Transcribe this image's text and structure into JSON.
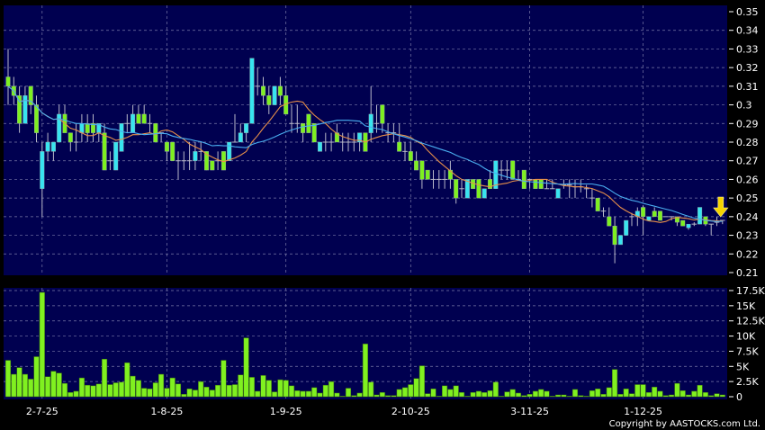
{
  "copyright": "Copyright by AASTOCKS.com Ltd.",
  "colors": {
    "background": "#000000",
    "panel": "#000050",
    "grid": "#7a7aa8",
    "up": "#38e4f0",
    "down": "#7ef020",
    "volume": "#80f020",
    "ma_short": "#e8904a",
    "ma_long": "#4aaef0",
    "marker": "#f5d400"
  },
  "chart_data": [
    {
      "type": "candlestick",
      "ylim": [
        0.21,
        0.35
      ],
      "yticks": [
        "0.21",
        "0.22",
        "0.23",
        "0.24",
        "0.25",
        "0.26",
        "0.27",
        "0.28",
        "0.29",
        "0.3",
        "0.31",
        "0.32",
        "0.33",
        "0.34",
        "0.35"
      ],
      "grid": true,
      "moving_averages": [
        {
          "window": 10,
          "color": "#e8904a"
        },
        {
          "window": 20,
          "color": "#4aaef0"
        }
      ],
      "marker": {
        "type": "down-arrow",
        "bar": 126
      },
      "candles_ohlc": [
        [
          0.315,
          0.33,
          0.3,
          0.31
        ],
        [
          0.31,
          0.315,
          0.3,
          0.305
        ],
        [
          0.305,
          0.31,
          0.285,
          0.29
        ],
        [
          0.29,
          0.31,
          0.29,
          0.305
        ],
        [
          0.31,
          0.31,
          0.295,
          0.3
        ],
        [
          0.3,
          0.305,
          0.28,
          0.285
        ],
        [
          0.255,
          0.28,
          0.24,
          0.275
        ],
        [
          0.275,
          0.285,
          0.27,
          0.28
        ],
        [
          0.275,
          0.28,
          0.27,
          0.28
        ],
        [
          0.28,
          0.3,
          0.28,
          0.295
        ],
        [
          0.295,
          0.3,
          0.285,
          0.285
        ],
        [
          0.285,
          0.285,
          0.275,
          0.28
        ],
        [
          0.28,
          0.29,
          0.275,
          0.28
        ],
        [
          0.285,
          0.295,
          0.28,
          0.29
        ],
        [
          0.29,
          0.295,
          0.28,
          0.285
        ],
        [
          0.29,
          0.295,
          0.28,
          0.285
        ],
        [
          0.285,
          0.29,
          0.28,
          0.29
        ],
        [
          0.285,
          0.29,
          0.265,
          0.265
        ],
        [
          0.27,
          0.275,
          0.265,
          0.27
        ],
        [
          0.265,
          0.28,
          0.265,
          0.28
        ],
        [
          0.275,
          0.29,
          0.275,
          0.29
        ],
        [
          0.29,
          0.295,
          0.285,
          0.29
        ],
        [
          0.285,
          0.3,
          0.285,
          0.295
        ],
        [
          0.295,
          0.3,
          0.29,
          0.29
        ],
        [
          0.295,
          0.3,
          0.29,
          0.29
        ],
        [
          0.29,
          0.295,
          0.285,
          0.29
        ],
        [
          0.29,
          0.29,
          0.28,
          0.28
        ],
        [
          0.285,
          0.285,
          0.28,
          0.285
        ],
        [
          0.28,
          0.28,
          0.27,
          0.275
        ],
        [
          0.28,
          0.28,
          0.27,
          0.27
        ],
        [
          0.27,
          0.275,
          0.26,
          0.27
        ],
        [
          0.27,
          0.275,
          0.265,
          0.27
        ],
        [
          0.27,
          0.28,
          0.265,
          0.27
        ],
        [
          0.27,
          0.28,
          0.265,
          0.275
        ],
        [
          0.275,
          0.28,
          0.27,
          0.275
        ],
        [
          0.275,
          0.275,
          0.265,
          0.265
        ],
        [
          0.27,
          0.27,
          0.265,
          0.265
        ],
        [
          0.27,
          0.275,
          0.265,
          0.27
        ],
        [
          0.275,
          0.275,
          0.265,
          0.265
        ],
        [
          0.27,
          0.28,
          0.27,
          0.28
        ],
        [
          0.28,
          0.295,
          0.28,
          0.28
        ],
        [
          0.28,
          0.29,
          0.28,
          0.285
        ],
        [
          0.285,
          0.29,
          0.28,
          0.29
        ],
        [
          0.29,
          0.325,
          0.29,
          0.325
        ],
        [
          0.31,
          0.32,
          0.305,
          0.31
        ],
        [
          0.31,
          0.315,
          0.3,
          0.305
        ],
        [
          0.305,
          0.31,
          0.295,
          0.3
        ],
        [
          0.3,
          0.31,
          0.3,
          0.31
        ],
        [
          0.31,
          0.315,
          0.3,
          0.305
        ],
        [
          0.305,
          0.31,
          0.295,
          0.295
        ],
        [
          0.29,
          0.3,
          0.285,
          0.29
        ],
        [
          0.29,
          0.3,
          0.285,
          0.29
        ],
        [
          0.29,
          0.29,
          0.28,
          0.285
        ],
        [
          0.295,
          0.295,
          0.285,
          0.285
        ],
        [
          0.29,
          0.29,
          0.28,
          0.28
        ],
        [
          0.275,
          0.28,
          0.275,
          0.28
        ],
        [
          0.28,
          0.285,
          0.275,
          0.28
        ],
        [
          0.28,
          0.285,
          0.275,
          0.28
        ],
        [
          0.285,
          0.29,
          0.28,
          0.28
        ],
        [
          0.28,
          0.285,
          0.275,
          0.28
        ],
        [
          0.28,
          0.285,
          0.275,
          0.28
        ],
        [
          0.28,
          0.285,
          0.275,
          0.28
        ],
        [
          0.28,
          0.285,
          0.275,
          0.285
        ],
        [
          0.285,
          0.285,
          0.275,
          0.275
        ],
        [
          0.285,
          0.31,
          0.28,
          0.295
        ],
        [
          0.29,
          0.3,
          0.285,
          0.29
        ],
        [
          0.3,
          0.3,
          0.285,
          0.29
        ],
        [
          0.285,
          0.29,
          0.28,
          0.285
        ],
        [
          0.285,
          0.29,
          0.28,
          0.285
        ],
        [
          0.28,
          0.29,
          0.275,
          0.275
        ],
        [
          0.275,
          0.28,
          0.27,
          0.275
        ],
        [
          0.275,
          0.28,
          0.27,
          0.27
        ],
        [
          0.27,
          0.275,
          0.265,
          0.265
        ],
        [
          0.27,
          0.27,
          0.255,
          0.26
        ],
        [
          0.265,
          0.265,
          0.26,
          0.26
        ],
        [
          0.26,
          0.265,
          0.255,
          0.26
        ],
        [
          0.26,
          0.265,
          0.255,
          0.26
        ],
        [
          0.26,
          0.265,
          0.255,
          0.26
        ],
        [
          0.265,
          0.27,
          0.255,
          0.26
        ],
        [
          0.26,
          0.26,
          0.247,
          0.25
        ],
        [
          0.255,
          0.26,
          0.25,
          0.255
        ],
        [
          0.25,
          0.26,
          0.25,
          0.26
        ],
        [
          0.26,
          0.26,
          0.255,
          0.255
        ],
        [
          0.26,
          0.26,
          0.25,
          0.25
        ],
        [
          0.25,
          0.255,
          0.25,
          0.255
        ],
        [
          0.26,
          0.265,
          0.255,
          0.255
        ],
        [
          0.255,
          0.27,
          0.255,
          0.27
        ],
        [
          0.265,
          0.27,
          0.26,
          0.265
        ],
        [
          0.265,
          0.27,
          0.26,
          0.265
        ],
        [
          0.27,
          0.27,
          0.26,
          0.26
        ],
        [
          0.26,
          0.265,
          0.26,
          0.26
        ],
        [
          0.265,
          0.265,
          0.255,
          0.255
        ],
        [
          0.26,
          0.26,
          0.255,
          0.26
        ],
        [
          0.26,
          0.26,
          0.255,
          0.255
        ],
        [
          0.26,
          0.26,
          0.255,
          0.255
        ],
        [
          0.255,
          0.26,
          0.255,
          0.255
        ],
        [
          0.255,
          0.26,
          0.255,
          0.255
        ],
        [
          0.25,
          0.255,
          0.25,
          0.255
        ],
        [
          0.257,
          0.26,
          0.255,
          0.257
        ],
        [
          0.257,
          0.26,
          0.25,
          0.257
        ],
        [
          0.256,
          0.26,
          0.25,
          0.256
        ],
        [
          0.256,
          0.26,
          0.253,
          0.256
        ],
        [
          0.255,
          0.257,
          0.25,
          0.255
        ],
        [
          0.25,
          0.255,
          0.245,
          0.25
        ],
        [
          0.25,
          0.25,
          0.243,
          0.243
        ],
        [
          0.243,
          0.245,
          0.24,
          0.243
        ],
        [
          0.24,
          0.245,
          0.235,
          0.235
        ],
        [
          0.235,
          0.24,
          0.215,
          0.225
        ],
        [
          0.225,
          0.23,
          0.225,
          0.23
        ],
        [
          0.23,
          0.238,
          0.23,
          0.238
        ],
        [
          0.24,
          0.242,
          0.235,
          0.24
        ],
        [
          0.24,
          0.245,
          0.235,
          0.243
        ],
        [
          0.245,
          0.246,
          0.23,
          0.24
        ],
        [
          0.238,
          0.24,
          0.238,
          0.24
        ],
        [
          0.243,
          0.245,
          0.24,
          0.24
        ],
        [
          0.243,
          0.243,
          0.238,
          0.238
        ],
        [
          0.24,
          0.24,
          0.24,
          0.24
        ],
        [
          0.24,
          0.24,
          0.238,
          0.24
        ],
        [
          0.24,
          0.24,
          0.235,
          0.237
        ],
        [
          0.238,
          0.238,
          0.235,
          0.235
        ],
        [
          0.234,
          0.236,
          0.233,
          0.236
        ],
        [
          0.236,
          0.237,
          0.235,
          0.236
        ],
        [
          0.236,
          0.245,
          0.236,
          0.245
        ],
        [
          0.24,
          0.24,
          0.235,
          0.236
        ],
        [
          0.236,
          0.236,
          0.23,
          0.236
        ],
        [
          0.237,
          0.24,
          0.235,
          0.237
        ],
        [
          0.238,
          0.238,
          0.236,
          0.238
        ]
      ]
    },
    {
      "type": "bar",
      "ylim": [
        0,
        17.5
      ],
      "yticks": [
        "0",
        "2.5K",
        "5K",
        "7.5K",
        "10K",
        "12.5K",
        "15K",
        "17.5K"
      ],
      "grid": true,
      "unit": "K",
      "volume": [
        6.0,
        3.7,
        4.8,
        3.7,
        2.9,
        6.6,
        17.2,
        3.3,
        4.2,
        3.9,
        2.2,
        0.7,
        0.9,
        3.1,
        1.9,
        1.8,
        2.1,
        6.2,
        2.0,
        2.3,
        2.4,
        5.6,
        3.4,
        2.7,
        1.4,
        1.3,
        2.3,
        3.7,
        1.4,
        3.1,
        2.1,
        0.4,
        1.3,
        1.1,
        2.5,
        1.6,
        1.1,
        1.9,
        6.0,
        1.9,
        2.0,
        3.6,
        9.7,
        3.2,
        0.9,
        3.5,
        2.7,
        0.8,
        2.8,
        2.7,
        1.8,
        1.0,
        0.9,
        0.9,
        1.5,
        0.6,
        1.9,
        2.5,
        0.6,
        0.1,
        1.4,
        0.2,
        0.6,
        8.7,
        2.4,
        0.3,
        0.7,
        0.2,
        0.2,
        1.2,
        1.5,
        2.0,
        3.0,
        5.1,
        0.5,
        1.3,
        0.1,
        1.8,
        1.2,
        1.8,
        0.7,
        0.1,
        0.7,
        0.9,
        0.7,
        1.0,
        2.4,
        0.1,
        0.8,
        1.2,
        0.6,
        0.2,
        0.4,
        0.9,
        1.2,
        0.9,
        0.1,
        0.3,
        0.3,
        0.1,
        1.2,
        0.2,
        0.1,
        1.0,
        1.3,
        0.4,
        1.5,
        4.5,
        0.4,
        1.3,
        0.5,
        2.0,
        2.0,
        0.7,
        1.6,
        0.9,
        0.2,
        0.3,
        2.2,
        1.0,
        0.3,
        0.9,
        1.9,
        0.7,
        0.2,
        0.5,
        0.3
      ]
    }
  ],
  "x_ticks": [
    {
      "label": "2-7-25",
      "bar": 6
    },
    {
      "label": "1-8-25",
      "bar": 28
    },
    {
      "label": "1-9-25",
      "bar": 49
    },
    {
      "label": "2-10-25",
      "bar": 71
    },
    {
      "label": "3-11-25",
      "bar": 92
    },
    {
      "label": "1-12-25",
      "bar": 112
    }
  ]
}
